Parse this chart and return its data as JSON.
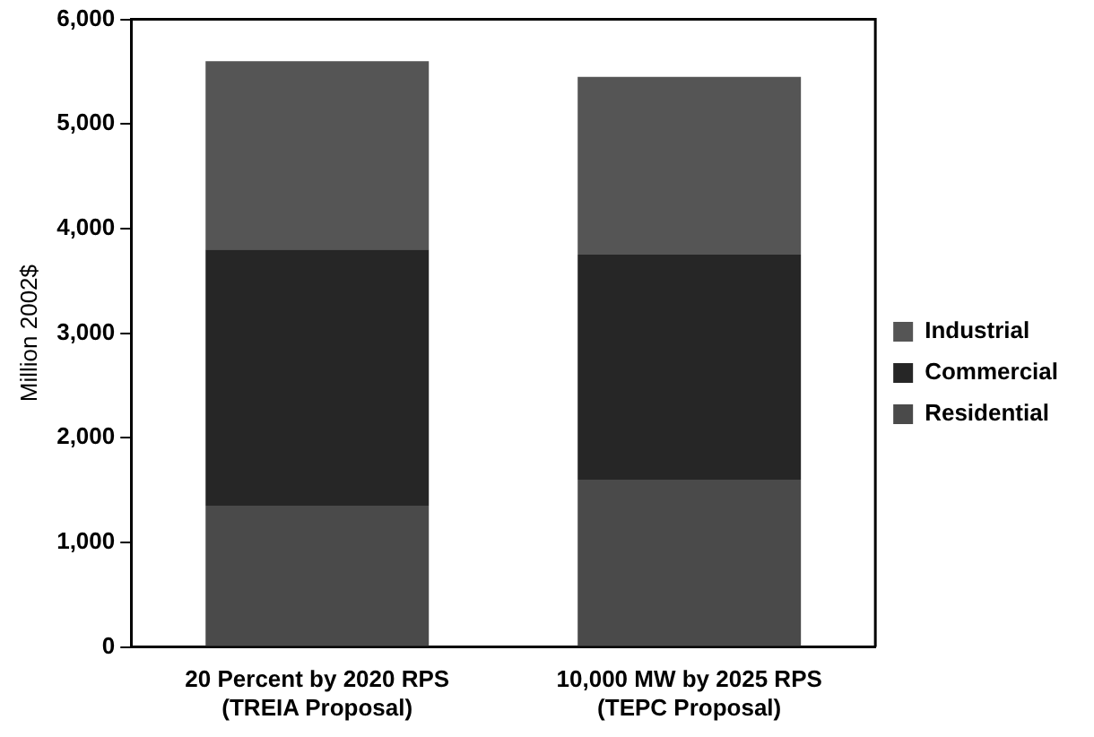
{
  "chart_data": {
    "type": "bar",
    "stacked": true,
    "ylabel": "Million 2002$",
    "categories": [
      "20 Percent by 2020 RPS\n(TREIA Proposal)",
      "10,000 MW by 2025 RPS\n(TEPC Proposal)"
    ],
    "series": [
      {
        "name": "Residential",
        "color": "#4a4a4a",
        "values": [
          1350,
          1600
        ]
      },
      {
        "name": "Commercial",
        "color": "#262626",
        "values": [
          2450,
          2150
        ]
      },
      {
        "name": "Industrial",
        "color": "#555555",
        "values": [
          1800,
          1700
        ]
      }
    ],
    "ylim": [
      0,
      6000
    ],
    "yticks": [
      {
        "value": 0,
        "label": "0"
      },
      {
        "value": 1000,
        "label": "1,000"
      },
      {
        "value": 2000,
        "label": "2,000"
      },
      {
        "value": 3000,
        "label": "3,000"
      },
      {
        "value": 4000,
        "label": "4,000"
      },
      {
        "value": 5000,
        "label": "5,000"
      },
      {
        "value": 6000,
        "label": "6,000"
      }
    ],
    "grid": false,
    "legend": "right"
  }
}
